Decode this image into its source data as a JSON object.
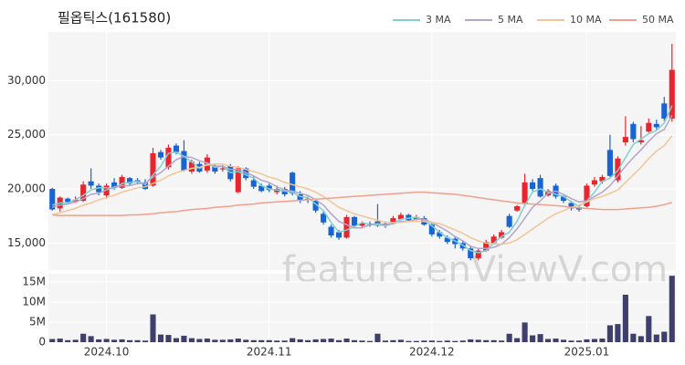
{
  "chart_data": {
    "type": "candlestick",
    "title": "필옵틱스(161580)",
    "watermark": "feature.enViewV.com",
    "categories": [
      null,
      null,
      null,
      null,
      null,
      null,
      null,
      "2024.10",
      null,
      null,
      null,
      null,
      null,
      null,
      null,
      null,
      null,
      null,
      null,
      null,
      null,
      null,
      null,
      null,
      null,
      null,
      null,
      null,
      "2024.11",
      null,
      null,
      null,
      null,
      null,
      null,
      null,
      null,
      null,
      null,
      null,
      null,
      null,
      null,
      null,
      null,
      null,
      null,
      null,
      null,
      "2024.12",
      null,
      null,
      null,
      null,
      null,
      null,
      null,
      null,
      null,
      null,
      null,
      null,
      null,
      null,
      null,
      null,
      null,
      null,
      null,
      "2025.01",
      null,
      null,
      null,
      null,
      null,
      null,
      null,
      null,
      null,
      null,
      null
    ],
    "open": [
      20000,
      18200,
      19100,
      18800,
      18900,
      20700,
      20300,
      19400,
      20600,
      20100,
      21000,
      20800,
      20600,
      20300,
      23400,
      22000,
      24000,
      23500,
      21600,
      22300,
      21700,
      22100,
      21800,
      22100,
      19700,
      21900,
      20800,
      20300,
      20300,
      19700,
      20000,
      21500,
      19500,
      19100,
      18900,
      17700,
      16500,
      16000,
      15500,
      17400,
      16600,
      16800,
      17000,
      16800,
      16800,
      17200,
      17600,
      17200,
      17300,
      16700,
      16000,
      15500,
      15400,
      15000,
      14500,
      13600,
      14300,
      15000,
      15500,
      17500,
      18000,
      18600,
      20600,
      21000,
      19400,
      20300,
      19300,
      18700,
      18300,
      18400,
      20400,
      20700,
      23600,
      20800,
      24300,
      26000,
      24300,
      25300,
      26000,
      27900,
      26500
    ],
    "high": [
      20100,
      19300,
      19200,
      19300,
      20700,
      21900,
      20500,
      20500,
      21000,
      21300,
      21100,
      21000,
      20900,
      23800,
      23600,
      24100,
      24200,
      24500,
      22700,
      22500,
      23200,
      22300,
      22200,
      22300,
      22100,
      22000,
      21200,
      20500,
      20500,
      20300,
      20200,
      21600,
      19800,
      19300,
      19000,
      17900,
      16700,
      16200,
      17600,
      17500,
      17000,
      17000,
      18600,
      17000,
      17500,
      17800,
      17700,
      17600,
      17500,
      16900,
      16200,
      15700,
      15600,
      15200,
      14700,
      14500,
      15300,
      15800,
      16200,
      17700,
      18500,
      21400,
      20900,
      21300,
      20000,
      20500,
      19400,
      18900,
      18500,
      20500,
      21100,
      21300,
      25000,
      23000,
      26700,
      26200,
      25800,
      26500,
      26400,
      28500,
      33400
    ],
    "low": [
      18000,
      17900,
      18700,
      18700,
      18800,
      20000,
      19400,
      19100,
      19900,
      20000,
      20300,
      20400,
      19900,
      20200,
      22700,
      21800,
      23200,
      21600,
      21400,
      21500,
      21500,
      21400,
      21600,
      20700,
      19600,
      20800,
      20000,
      19700,
      19700,
      19500,
      19300,
      19400,
      18700,
      18700,
      17800,
      16700,
      15500,
      15300,
      15400,
      16500,
      16500,
      16500,
      16500,
      16400,
      16700,
      17100,
      17000,
      17100,
      16600,
      15600,
      15400,
      14900,
      14500,
      14300,
      13400,
      13400,
      14200,
      14900,
      15400,
      16400,
      17900,
      18400,
      19800,
      19200,
      19300,
      19100,
      18700,
      18000,
      17900,
      18300,
      20200,
      20500,
      21100,
      20600,
      24000,
      24300,
      24100,
      25200,
      25500,
      26300,
      26200
    ],
    "close": [
      18100,
      19200,
      18800,
      19000,
      20400,
      20300,
      19700,
      20300,
      20100,
      21100,
      20500,
      20600,
      20000,
      23300,
      22900,
      23800,
      23400,
      21700,
      22500,
      21600,
      22900,
      21600,
      21900,
      20900,
      21900,
      21000,
      20200,
      19800,
      19900,
      20000,
      19500,
      19600,
      18900,
      19000,
      18000,
      16900,
      15700,
      15500,
      17400,
      16600,
      16800,
      16700,
      16600,
      16600,
      17300,
      17600,
      17100,
      17400,
      16700,
      15800,
      15600,
      15100,
      14900,
      14500,
      13600,
      14300,
      15100,
      15600,
      16000,
      16500,
      18400,
      20600,
      20000,
      19300,
      19800,
      19300,
      18900,
      18200,
      18100,
      20300,
      20800,
      21100,
      21200,
      22800,
      24800,
      24600,
      24500,
      26100,
      25700,
      26500,
      31000
    ],
    "up_color": "#e8262f",
    "down_color": "#1764d6",
    "ylim": [
      12500,
      34500
    ],
    "yticks": [
      {
        "value": 15000,
        "label": "15,000"
      },
      {
        "value": 20000,
        "label": "20,000"
      },
      {
        "value": 25000,
        "label": "25,000"
      },
      {
        "value": 30000,
        "label": "30,000"
      }
    ],
    "grid": true,
    "legend": "top-right",
    "series": [
      {
        "name": "3 MA",
        "color": "#7fd1cf",
        "values": [
          18500,
          18700,
          18700,
          19000,
          19400,
          19900,
          20100,
          20100,
          20000,
          20500,
          20600,
          20700,
          20400,
          21300,
          22100,
          23300,
          23400,
          23000,
          22500,
          21900,
          22300,
          22000,
          22100,
          21500,
          21600,
          21300,
          21000,
          20300,
          20000,
          19900,
          19800,
          19700,
          19300,
          19200,
          18600,
          18000,
          16900,
          16000,
          16200,
          16500,
          16900,
          16700,
          16700,
          16600,
          16800,
          17200,
          17300,
          17400,
          17100,
          16600,
          16000,
          15500,
          15200,
          14800,
          14300,
          14100,
          14300,
          15000,
          15600,
          16000,
          17000,
          18500,
          19700,
          20000,
          19700,
          19500,
          19300,
          18800,
          18400,
          18900,
          19700,
          20700,
          21000,
          21700,
          22900,
          24100,
          24600,
          25100,
          25400,
          26100,
          27700
        ]
      },
      {
        "name": "5 MA",
        "color": "#b3a5cc",
        "values": [
          18300,
          18500,
          18600,
          18800,
          19100,
          19500,
          19600,
          19900,
          20200,
          20300,
          20300,
          20500,
          20500,
          21100,
          21500,
          22100,
          22700,
          23000,
          22900,
          22600,
          22400,
          22100,
          22100,
          21800,
          21800,
          21500,
          21200,
          20800,
          20600,
          20200,
          19900,
          19800,
          19600,
          19400,
          19000,
          18500,
          17700,
          17000,
          16700,
          16400,
          16400,
          16700,
          16800,
          16700,
          16800,
          17000,
          17000,
          17200,
          17200,
          16900,
          16500,
          16100,
          15600,
          15200,
          14700,
          14500,
          14500,
          14600,
          14900,
          15500,
          16300,
          17300,
          18300,
          18900,
          19600,
          19800,
          19500,
          19100,
          18800,
          18900,
          19300,
          19700,
          20300,
          21200,
          22100,
          22900,
          23600,
          24400,
          25100,
          25500,
          26800
        ]
      },
      {
        "name": "10 MA",
        "color": "#f2c595",
        "values": [
          17600,
          17800,
          18000,
          18200,
          18500,
          18700,
          19000,
          19200,
          19400,
          19700,
          19900,
          20100,
          20200,
          20500,
          20800,
          21200,
          21500,
          21700,
          21900,
          22000,
          22200,
          22300,
          22300,
          22100,
          22000,
          21800,
          21600,
          21400,
          21100,
          20900,
          20600,
          20400,
          20200,
          20000,
          19700,
          19300,
          18800,
          18300,
          18000,
          17700,
          17500,
          17300,
          17100,
          16900,
          16900,
          16900,
          17000,
          17000,
          17000,
          16900,
          16800,
          16500,
          16200,
          15900,
          15500,
          15200,
          15000,
          14900,
          14900,
          15000,
          15300,
          15800,
          16300,
          16800,
          17300,
          17700,
          18000,
          18300,
          18500,
          18800,
          19100,
          19300,
          19600,
          19900,
          20600,
          21300,
          22000,
          22800,
          23500,
          24000,
          24900
        ]
      },
      {
        "name": "50 MA",
        "color": "#f0a08c",
        "values": [
          17600,
          17550,
          17550,
          17550,
          17550,
          17550,
          17550,
          17550,
          17550,
          17550,
          17600,
          17600,
          17650,
          17700,
          17800,
          17850,
          17900,
          18000,
          18100,
          18150,
          18200,
          18300,
          18350,
          18400,
          18500,
          18550,
          18600,
          18700,
          18750,
          18800,
          18850,
          18900,
          18950,
          19000,
          19050,
          19100,
          19150,
          19200,
          19250,
          19300,
          19350,
          19400,
          19450,
          19500,
          19550,
          19600,
          19650,
          19700,
          19700,
          19650,
          19600,
          19550,
          19500,
          19400,
          19300,
          19200,
          19100,
          19000,
          18900,
          18800,
          18700,
          18650,
          18600,
          18550,
          18500,
          18450,
          18400,
          18300,
          18250,
          18200,
          18150,
          18100,
          18100,
          18100,
          18150,
          18200,
          18250,
          18300,
          18400,
          18550,
          18750
        ]
      }
    ],
    "volume": {
      "color": "#3f3f6b",
      "values": [
        800000,
        900000,
        500000,
        600000,
        2100000,
        1500000,
        700000,
        800000,
        600000,
        700000,
        500000,
        500000,
        400000,
        6900000,
        1900000,
        1800000,
        1000000,
        1600000,
        1000000,
        800000,
        900000,
        600000,
        600000,
        700000,
        900000,
        600000,
        500000,
        500000,
        500000,
        400000,
        400000,
        1000000,
        700000,
        500000,
        700000,
        800000,
        900000,
        500000,
        900000,
        500000,
        400000,
        300000,
        2100000,
        400000,
        500000,
        600000,
        300000,
        300000,
        400000,
        400000,
        300000,
        400000,
        300000,
        400000,
        700000,
        600000,
        500000,
        500000,
        400000,
        2100000,
        1000000,
        4900000,
        1700000,
        2000000,
        800000,
        900000,
        600000,
        400000,
        400000,
        700000,
        800000,
        900000,
        4200000,
        4500000,
        11800000,
        2100000,
        1500000,
        6500000,
        1900000,
        2600000,
        16500000
      ],
      "ylim": [
        0,
        17000000
      ],
      "yticks": [
        0,
        {
          "value": 5000000,
          "label": "5M"
        },
        {
          "value": 10000000,
          "label": "10M"
        },
        {
          "value": 15000000,
          "label": "15M"
        }
      ]
    }
  }
}
